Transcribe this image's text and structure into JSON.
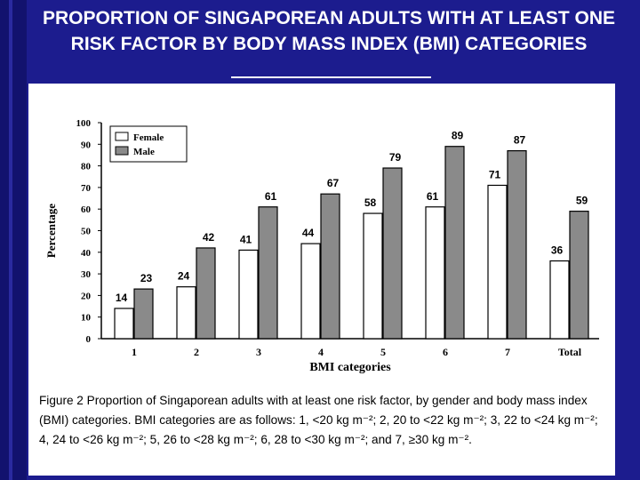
{
  "slide": {
    "title": "PROPORTION OF SINGAPOREAN ADULTS WITH AT LEAST ONE RISK FACTOR BY BODY MASS INDEX (BMI) CATEGORIES",
    "caption": "Figure 2  Proportion of Singaporean adults with at least one risk factor, by gender and body mass index (BMI) categories. BMI categories are as follows: 1, <20 kg m⁻²; 2, 20 to <22 kg m⁻²; 3, 22 to <24 kg m⁻²; 4, 24 to <26 kg m⁻²; 5, 26 to <28 kg m⁻²; 6, 28 to <30 kg m⁻²; and 7, ≥30 kg m⁻²."
  },
  "colors": {
    "background": "#1c1c8e",
    "female_fill": "#ffffff",
    "male_fill": "#8a8a8a"
  },
  "chart_data": {
    "type": "bar",
    "title": "",
    "xlabel": "BMI categories",
    "ylabel": "Percentage",
    "ylim": [
      0,
      100
    ],
    "yticks": [
      0,
      10,
      20,
      30,
      40,
      50,
      60,
      70,
      80,
      90,
      100
    ],
    "categories": [
      "1",
      "2",
      "3",
      "4",
      "5",
      "6",
      "7",
      "Total"
    ],
    "series": [
      {
        "name": "Female",
        "values": [
          14,
          24,
          41,
          44,
          58,
          61,
          71,
          36
        ]
      },
      {
        "name": "Male",
        "values": [
          23,
          42,
          61,
          67,
          79,
          89,
          87,
          59
        ]
      }
    ],
    "legend": "top-left",
    "grid": false
  }
}
